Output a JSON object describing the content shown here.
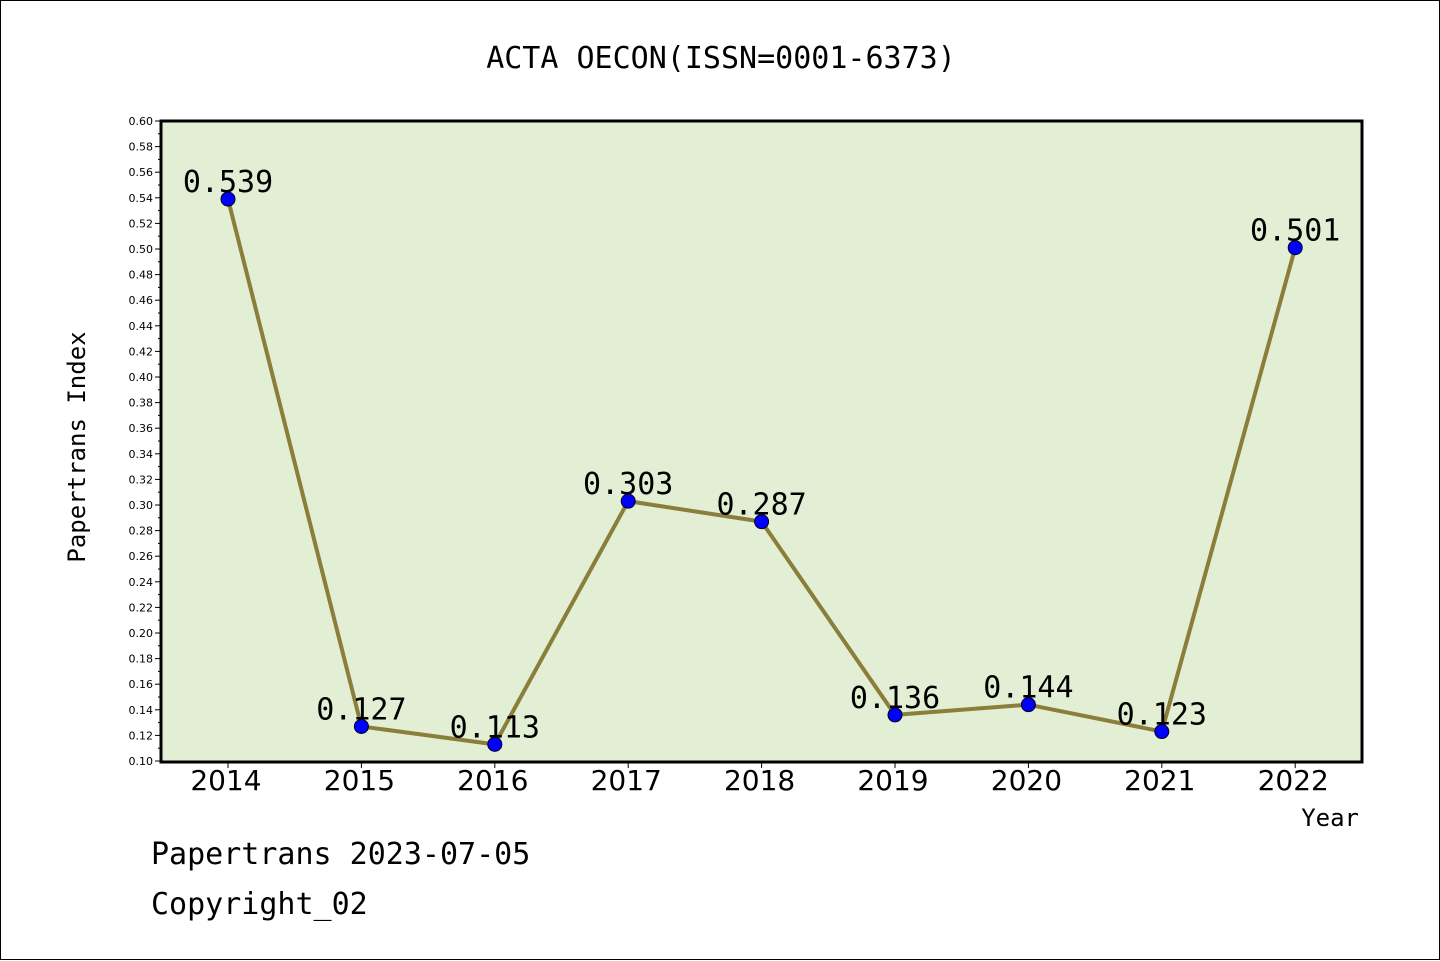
{
  "chart_data": {
    "type": "line",
    "title": "ACTA OECON(ISSN=0001-6373)",
    "xlabel": "Year",
    "ylabel": "Papertrans Index",
    "categories": [
      "2014",
      "2015",
      "2016",
      "2017",
      "2018",
      "2019",
      "2020",
      "2021",
      "2022"
    ],
    "values": [
      0.539,
      0.127,
      0.113,
      0.303,
      0.287,
      0.136,
      0.144,
      0.123,
      0.501
    ],
    "data_labels": [
      "0.539",
      "0.127",
      "0.113",
      "0.303",
      "0.287",
      "0.136",
      "0.144",
      "0.123",
      "0.501"
    ],
    "ylim": [
      0.1,
      0.6
    ],
    "yticks": [
      "0.10",
      "0.12",
      "0.14",
      "0.16",
      "0.18",
      "0.20",
      "0.22",
      "0.24",
      "0.26",
      "0.28",
      "0.30",
      "0.32",
      "0.34",
      "0.36",
      "0.38",
      "0.40",
      "0.42",
      "0.44",
      "0.46",
      "0.48",
      "0.50",
      "0.52",
      "0.54",
      "0.56",
      "0.58",
      "0.60"
    ],
    "grid": false,
    "legend": "none",
    "colors": {
      "plot_background": "#e2efd5",
      "line": "#8b7d3a",
      "marker": "#0000ff"
    }
  },
  "footer": {
    "line1": "Papertrans 2023-07-05",
    "line2": "Copyright_02"
  }
}
